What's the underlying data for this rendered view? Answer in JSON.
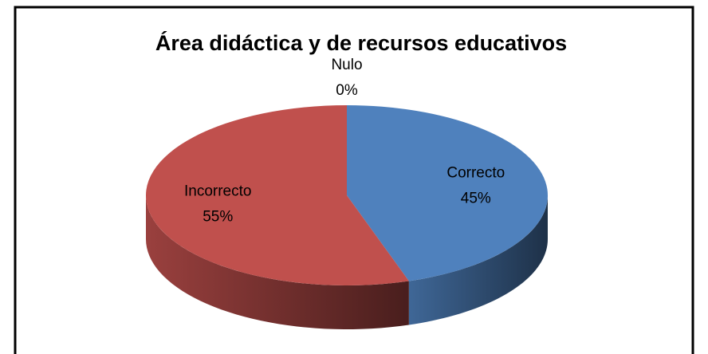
{
  "chart_data": {
    "type": "pie",
    "title": "Área didáctica y de recursos educativos",
    "categories": [
      "Correcto",
      "Incorrecto",
      "Nulo"
    ],
    "values": [
      45,
      55,
      0
    ],
    "value_labels": [
      "45%",
      "55%",
      "0%"
    ],
    "colors": [
      "#4f81bd",
      "#c0504d",
      "#9bbb59"
    ]
  }
}
